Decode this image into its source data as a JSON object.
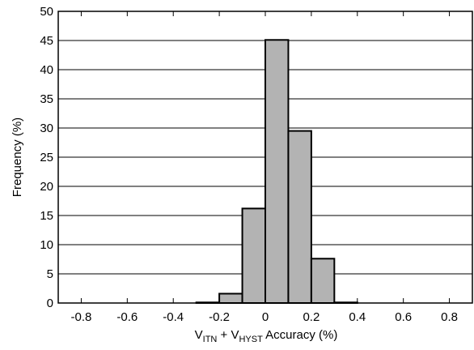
{
  "chart_data": {
    "type": "bar",
    "title": "",
    "xlabel": {
      "parts": [
        {
          "text": "V",
          "sub": false
        },
        {
          "text": "ITN",
          "sub": true
        },
        {
          "text": " + V",
          "sub": false
        },
        {
          "text": "HYST",
          "sub": true
        },
        {
          "text": " Accuracy (%)",
          "sub": false
        }
      ]
    },
    "ylabel": "Frequency (%)",
    "xlim": [
      -0.9,
      0.9
    ],
    "ylim": [
      0,
      50
    ],
    "x_ticks": [
      -0.8,
      -0.6,
      -0.4,
      -0.2,
      0,
      0.2,
      0.4,
      0.6,
      0.8
    ],
    "x_tick_labels": [
      "-0.8",
      "-0.6",
      "-0.4",
      "-0.2",
      "0",
      "0.2",
      "0.4",
      "0.6",
      "0.8"
    ],
    "y_ticks": [
      0,
      5,
      10,
      15,
      20,
      25,
      30,
      35,
      40,
      45,
      50
    ],
    "y_tick_labels": [
      "0",
      "5",
      "10",
      "15",
      "20",
      "25",
      "30",
      "35",
      "40",
      "45",
      "50"
    ],
    "grid": {
      "horizontal": true,
      "vertical": false
    },
    "bin_width": 0.1,
    "bins": [
      {
        "x0": -0.3,
        "x1": -0.2,
        "value": 0.1
      },
      {
        "x0": -0.2,
        "x1": -0.1,
        "value": 1.6
      },
      {
        "x0": -0.1,
        "x1": 0.0,
        "value": 16.2
      },
      {
        "x0": 0.0,
        "x1": 0.1,
        "value": 45.1
      },
      {
        "x0": 0.1,
        "x1": 0.2,
        "value": 29.5
      },
      {
        "x0": 0.2,
        "x1": 0.3,
        "value": 7.6
      },
      {
        "x0": 0.3,
        "x1": 0.4,
        "value": 0.1
      }
    ],
    "colors": {
      "bar_fill": "#b3b3b3",
      "bar_stroke": "#000000",
      "grid": "#000000"
    }
  }
}
